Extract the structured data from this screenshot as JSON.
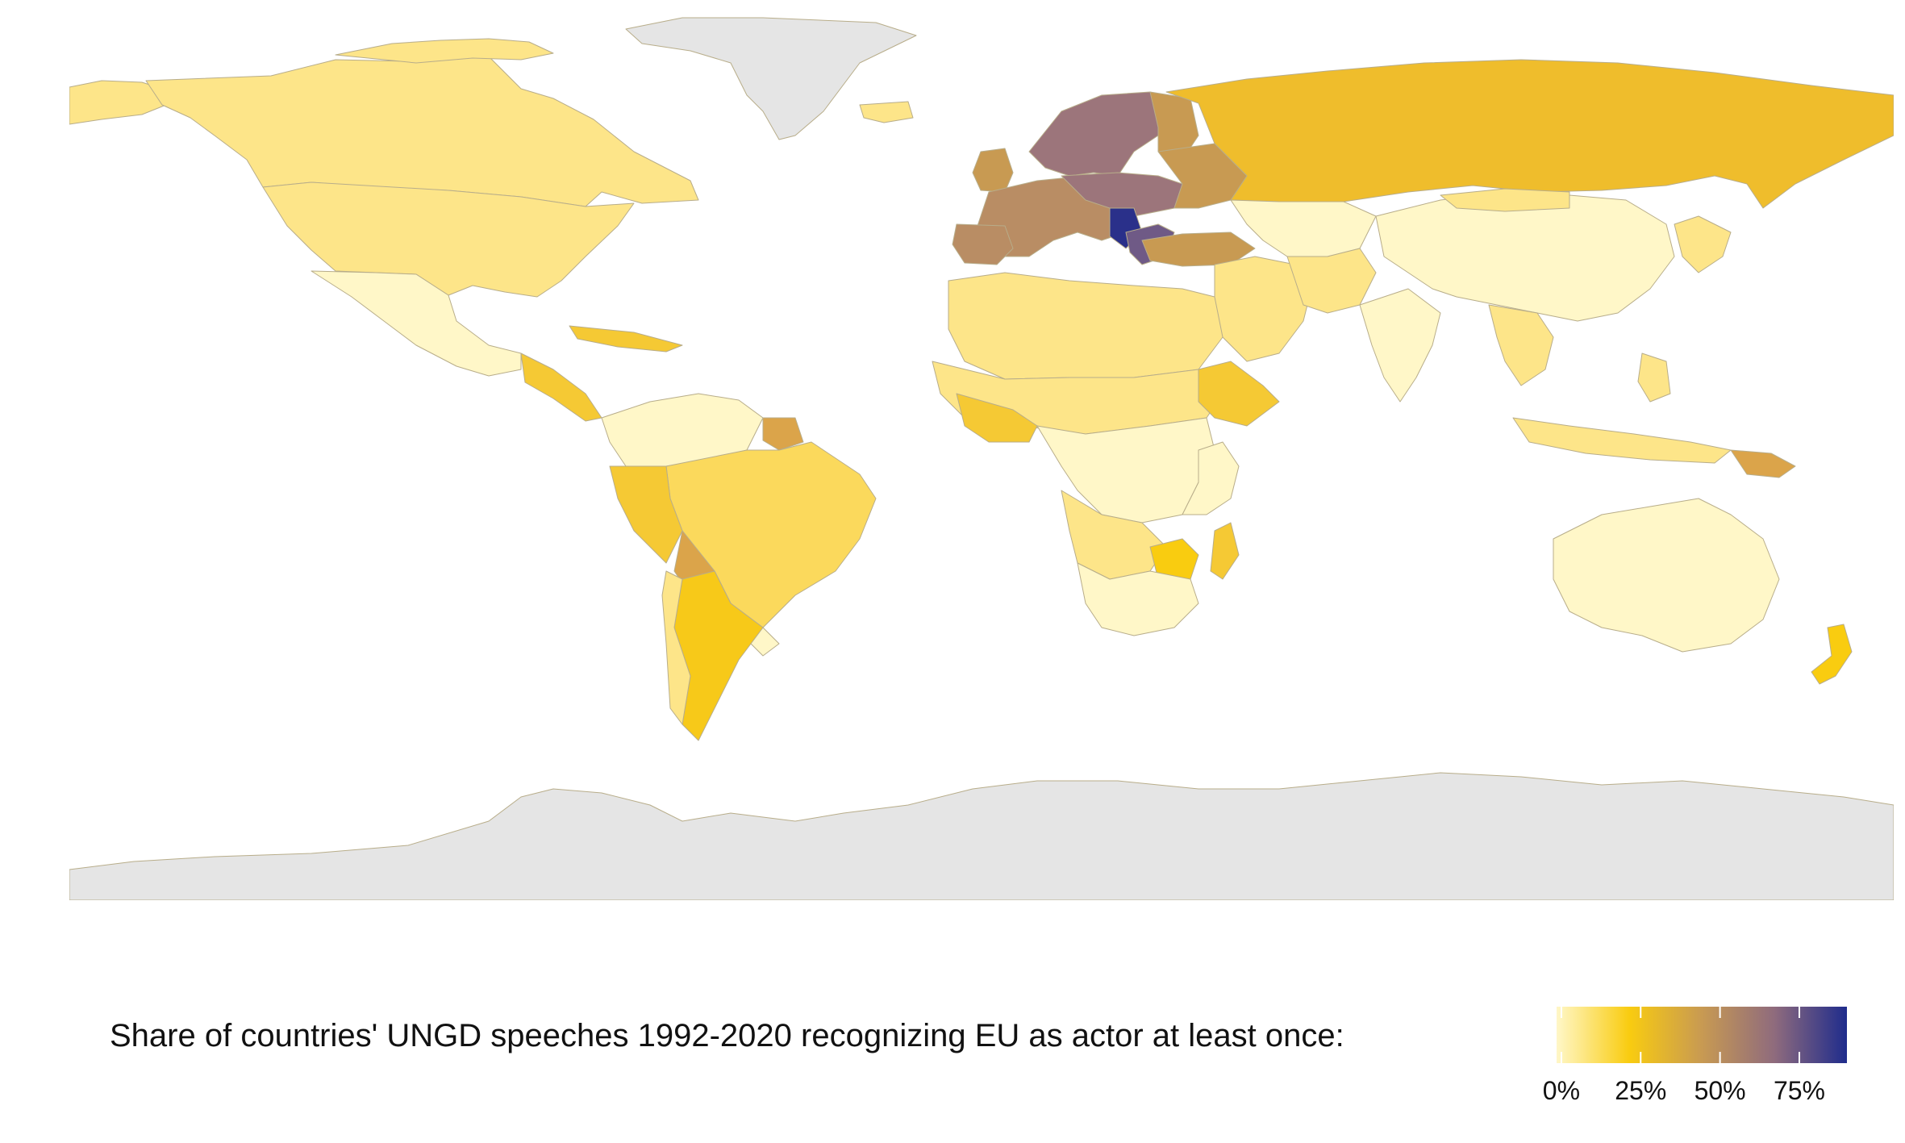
{
  "legend": {
    "caption": "Share of countries' UNGD speeches 1992-2020 recognizing EU as actor at least once:",
    "ticks": [
      {
        "label": "0%",
        "value": 0
      },
      {
        "label": "25%",
        "value": 25
      },
      {
        "label": "50%",
        "value": 50
      },
      {
        "label": "75%",
        "value": 75
      }
    ],
    "gradient_stops": [
      "#fff7c8",
      "#f9cc10",
      "#c89a52",
      "#8f6b7d",
      "#1f2c8c"
    ],
    "no_data_color": "#e5e5e5",
    "border_color": "#b8ad8a"
  },
  "countries": [
    {
      "name": "Greenland",
      "color": "#e5e5e5"
    },
    {
      "name": "Antarctica",
      "color": "#e5e5e5"
    },
    {
      "name": "Canada",
      "color": "#fde589"
    },
    {
      "name": "United States",
      "color": "#fde589"
    },
    {
      "name": "Mexico",
      "color": "#fff7c8"
    },
    {
      "name": "Brazil",
      "color": "#fbd95c"
    },
    {
      "name": "Argentina",
      "color": "#f7c919"
    },
    {
      "name": "Russia",
      "color": "#efbd2c"
    },
    {
      "name": "Scandinavia",
      "color": "#9c757b"
    },
    {
      "name": "Western Europe",
      "color": "#b98d64"
    },
    {
      "name": "Balkans",
      "color": "#2a308a"
    },
    {
      "name": "China",
      "color": "#fff7c8"
    },
    {
      "name": "Australia",
      "color": "#fff7c8"
    },
    {
      "name": "Zimbabwe",
      "color": "#f9cc10"
    },
    {
      "name": "Ethiopia",
      "color": "#f5c934"
    },
    {
      "name": "Papua New Guinea",
      "color": "#dba44a"
    },
    {
      "name": "New Zealand",
      "color": "#f9cc10"
    }
  ]
}
